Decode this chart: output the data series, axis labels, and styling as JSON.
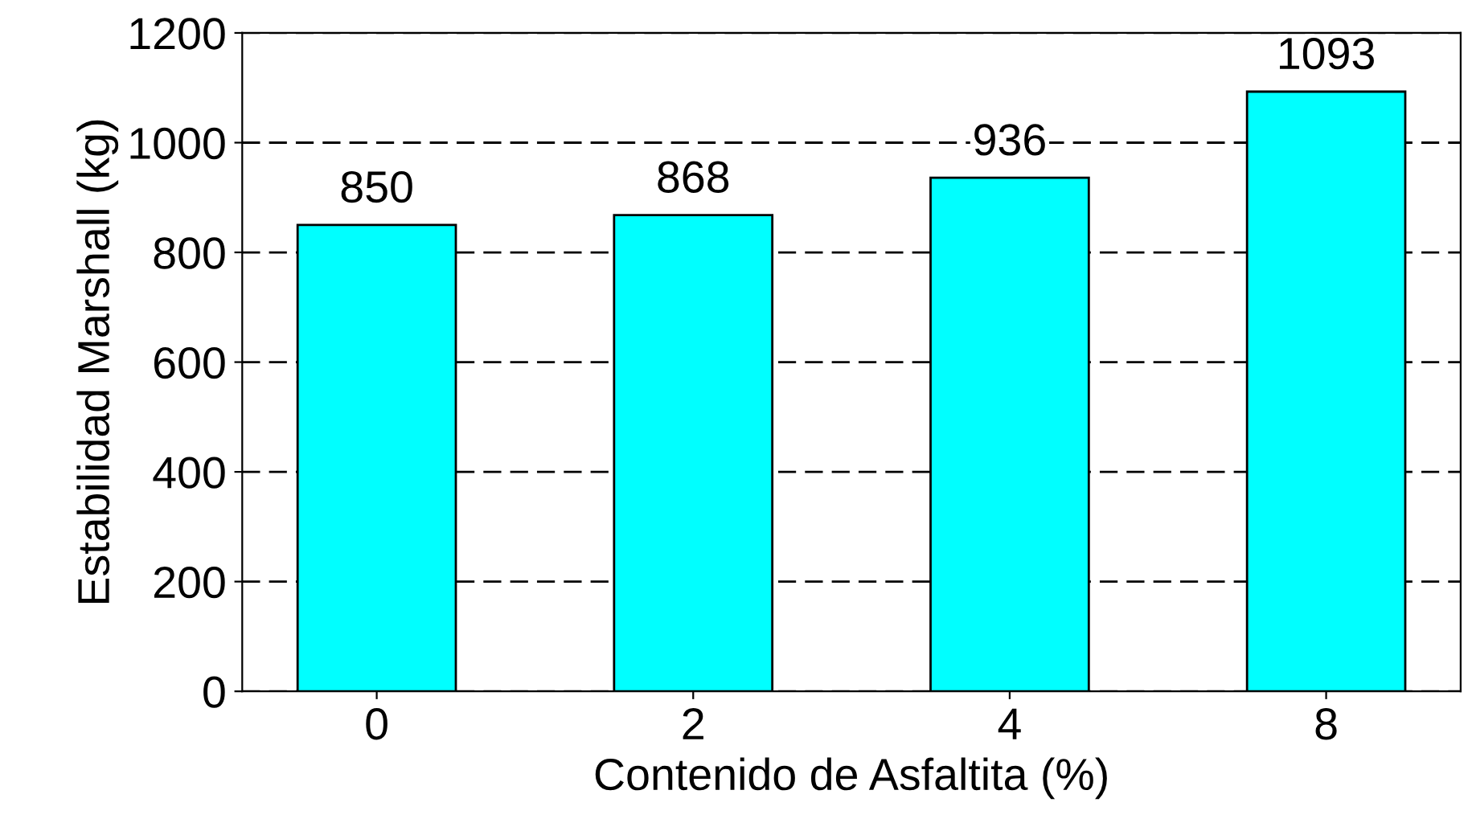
{
  "chart_data": {
    "type": "bar",
    "xlabel": "Contenido de Asfaltita (%)",
    "ylabel": "Estabilidad Marshall (kg)",
    "categories": [
      "0",
      "2",
      "4",
      "8"
    ],
    "values": [
      850,
      868,
      936,
      1093
    ],
    "color": "#00ffff",
    "ylim": [
      0,
      1200
    ],
    "yticks": [
      0,
      200,
      400,
      600,
      800,
      1000,
      1200
    ],
    "grid": "y",
    "line_style": "dashed",
    "data_labels": true
  }
}
